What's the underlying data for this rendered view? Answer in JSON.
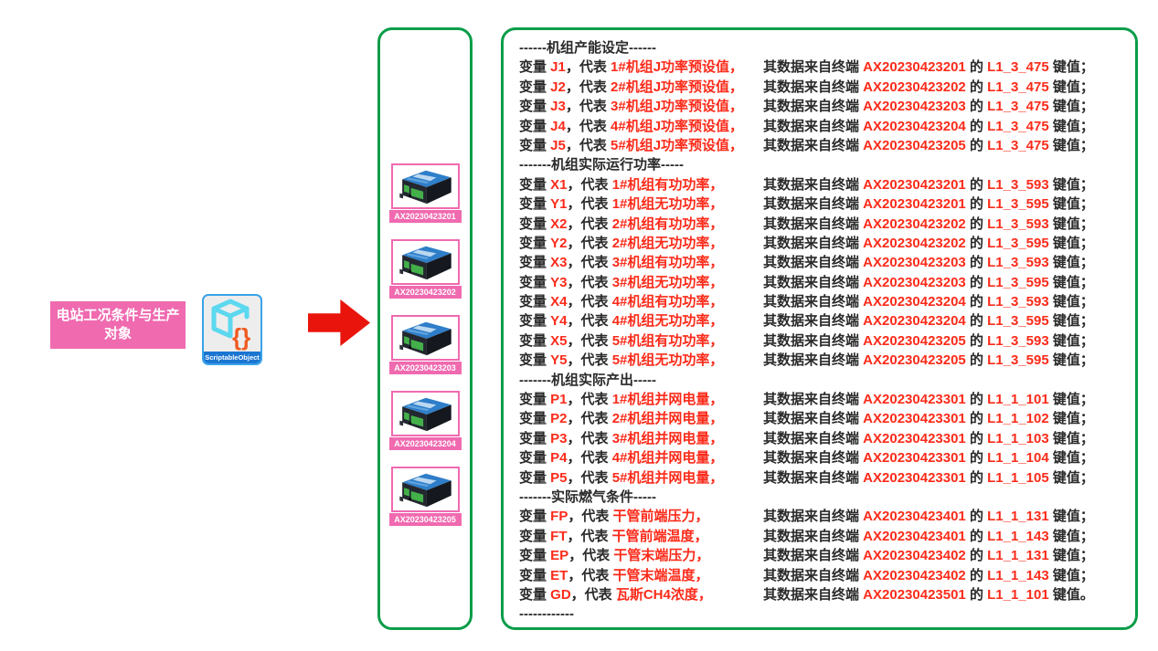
{
  "colors": {
    "green_border": "#0a9d49",
    "pink": "#f06ab0",
    "red_text": "#fc2b1a",
    "arrow_red": "#e9150c",
    "black_text": "#2a2a2a",
    "icon_border_blue": "#39a3e8",
    "icon_label_blue": "#1b76d2",
    "cube_cyan": "#5cd8ef",
    "braces_orange": "#ee5a21"
  },
  "left_label": {
    "line1": "电站工况条件与生产",
    "line2": "对象"
  },
  "scriptable_object": {
    "label": "ScriptableObject"
  },
  "devices": {
    "items": [
      "AX20230423201",
      "AX20230423202",
      "AX20230423203",
      "AX20230423204",
      "AX20230423205"
    ]
  },
  "variables": {
    "prefix": "变量 ",
    "mid": "，代表 ",
    "src": "其数据来自终端 ",
    "of": " 的 ",
    "sections": [
      {
        "header": "------机组产能设定------",
        "rows": [
          {
            "name": "J1",
            "desc": "1#机组J功率预设值，",
            "terminal": "AX20230423201",
            "key": "L1_3_475",
            "end": " 键值；"
          },
          {
            "name": "J2",
            "desc": "2#机组J功率预设值，",
            "terminal": "AX20230423202",
            "key": "L1_3_475",
            "end": " 键值；"
          },
          {
            "name": "J3",
            "desc": "3#机组J功率预设值，",
            "terminal": "AX20230423203",
            "key": "L1_3_475",
            "end": " 键值；"
          },
          {
            "name": "J4",
            "desc": "4#机组J功率预设值，",
            "terminal": "AX20230423204",
            "key": "L1_3_475",
            "end": " 键值；"
          },
          {
            "name": "J5",
            "desc": "5#机组J功率预设值，",
            "terminal": "AX20230423205",
            "key": "L1_3_475",
            "end": " 键值；"
          }
        ]
      },
      {
        "header": "-------机组实际运行功率-----",
        "rows": [
          {
            "name": "X1",
            "desc": "1#机组有功功率，",
            "terminal": "AX20230423201",
            "key": "L1_3_593",
            "end": " 键值；"
          },
          {
            "name": "Y1",
            "desc": "1#机组无功功率，",
            "terminal": "AX20230423201",
            "key": "L1_3_595",
            "end": " 键值；"
          },
          {
            "name": "X2",
            "desc": "2#机组有功功率，",
            "terminal": "AX20230423202",
            "key": "L1_3_593",
            "end": " 键值；"
          },
          {
            "name": "Y2",
            "desc": "2#机组无功功率，",
            "terminal": "AX20230423202",
            "key": "L1_3_595",
            "end": " 键值；"
          },
          {
            "name": "X3",
            "desc": "3#机组有功功率，",
            "terminal": "AX20230423203",
            "key": "L1_3_593",
            "end": " 键值；"
          },
          {
            "name": "Y3",
            "desc": "3#机组无功功率，",
            "terminal": "AX20230423203",
            "key": "L1_3_595",
            "end": " 键值；"
          },
          {
            "name": "X4",
            "desc": "4#机组有功功率，",
            "terminal": "AX20230423204",
            "key": "L1_3_593",
            "end": " 键值；"
          },
          {
            "name": "Y4",
            "desc": "4#机组无功功率，",
            "terminal": "AX20230423204",
            "key": "L1_3_595",
            "end": " 键值；"
          },
          {
            "name": "X5",
            "desc": "5#机组有功功率，",
            "terminal": "AX20230423205",
            "key": "L1_3_593",
            "end": " 键值；"
          },
          {
            "name": "Y5",
            "desc": "5#机组无功功率，",
            "terminal": "AX20230423205",
            "key": "L1_3_595",
            "end": " 键值；"
          }
        ]
      },
      {
        "header": "-------机组实际产出-----",
        "rows": [
          {
            "name": "P1",
            "desc": "1#机组并网电量，",
            "terminal": "AX20230423301",
            "key": "L1_1_101",
            "end": " 键值；"
          },
          {
            "name": "P2",
            "desc": "2#机组并网电量，",
            "terminal": "AX20230423301",
            "key": "L1_1_102",
            "end": " 键值；"
          },
          {
            "name": "P3",
            "desc": "3#机组并网电量，",
            "terminal": "AX20230423301",
            "key": "L1_1_103",
            "end": " 键值；"
          },
          {
            "name": "P4",
            "desc": "4#机组并网电量，",
            "terminal": "AX20230423301",
            "key": "L1_1_104",
            "end": " 键值；"
          },
          {
            "name": "P5",
            "desc": "5#机组并网电量，",
            "terminal": "AX20230423301",
            "key": "L1_1_105",
            "end": " 键值；"
          }
        ]
      },
      {
        "header": "-------实际燃气条件-----",
        "rows": [
          {
            "name": "FP",
            "desc": "干管前端压力，",
            "terminal": "AX20230423401",
            "key": "L1_1_131",
            "end": " 键值；"
          },
          {
            "name": "FT",
            "desc": "干管前端温度，",
            "terminal": "AX20230423401",
            "key": "L1_1_143",
            "end": " 键值；"
          },
          {
            "name": "EP",
            "desc": "干管末端压力，",
            "terminal": "AX20230423402",
            "key": "L1_1_131",
            "end": " 键值；"
          },
          {
            "name": "ET",
            "desc": "干管末端温度，",
            "terminal": "AX20230423402",
            "key": "L1_1_143",
            "end": " 键值；"
          },
          {
            "name": "GD",
            "desc": "瓦斯CH4浓度，",
            "terminal": "AX20230423501",
            "key": "L1_1_101",
            "end": " 键值。"
          }
        ]
      }
    ],
    "footer": "------------"
  }
}
